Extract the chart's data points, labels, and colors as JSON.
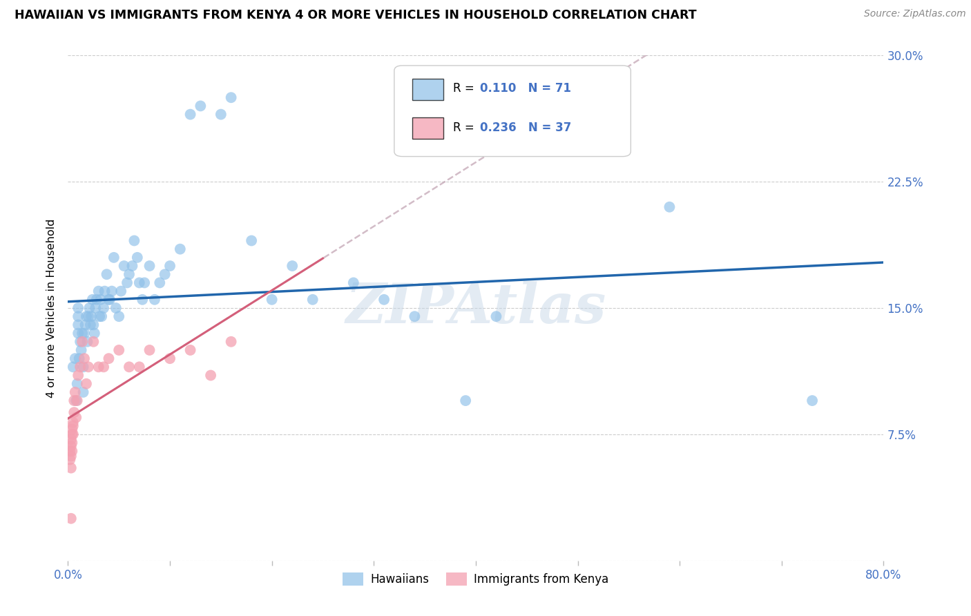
{
  "title": "HAWAIIAN VS IMMIGRANTS FROM KENYA 4 OR MORE VEHICLES IN HOUSEHOLD CORRELATION CHART",
  "source": "Source: ZipAtlas.com",
  "ylabel": "4 or more Vehicles in Household",
  "xlim": [
    0.0,
    0.8
  ],
  "ylim": [
    0.0,
    0.3
  ],
  "xticks": [
    0.0,
    0.1,
    0.2,
    0.3,
    0.4,
    0.5,
    0.6,
    0.7,
    0.8
  ],
  "xtick_labels": [
    "0.0%",
    "",
    "",
    "",
    "",
    "",
    "",
    "",
    "80.0%"
  ],
  "yticks": [
    0.0,
    0.075,
    0.15,
    0.225,
    0.3
  ],
  "ytick_labels": [
    "",
    "7.5%",
    "15.0%",
    "22.5%",
    "30.0%"
  ],
  "hawaiian_R": 0.11,
  "hawaiian_N": 71,
  "kenya_R": 0.236,
  "kenya_N": 37,
  "hawaiian_color": "#8dbfe8",
  "kenya_color": "#f4a0b0",
  "hawaiian_line_color": "#2166ac",
  "kenya_line_color": "#d45f7a",
  "kenya_dash_color": "#c0a0b0",
  "watermark": "ZIPAtlas",
  "hawaiian_x": [
    0.005,
    0.007,
    0.008,
    0.009,
    0.01,
    0.01,
    0.01,
    0.01,
    0.011,
    0.012,
    0.013,
    0.014,
    0.015,
    0.015,
    0.016,
    0.017,
    0.018,
    0.019,
    0.02,
    0.021,
    0.022,
    0.023,
    0.024,
    0.025,
    0.026,
    0.027,
    0.028,
    0.03,
    0.031,
    0.032,
    0.033,
    0.035,
    0.036,
    0.038,
    0.04,
    0.041,
    0.043,
    0.045,
    0.047,
    0.05,
    0.052,
    0.055,
    0.058,
    0.06,
    0.063,
    0.065,
    0.068,
    0.07,
    0.073,
    0.075,
    0.08,
    0.085,
    0.09,
    0.095,
    0.1,
    0.11,
    0.12,
    0.13,
    0.15,
    0.16,
    0.18,
    0.2,
    0.22,
    0.24,
    0.28,
    0.31,
    0.34,
    0.39,
    0.42,
    0.59,
    0.73
  ],
  "hawaiian_y": [
    0.115,
    0.12,
    0.095,
    0.105,
    0.135,
    0.14,
    0.145,
    0.15,
    0.12,
    0.13,
    0.125,
    0.135,
    0.1,
    0.115,
    0.135,
    0.14,
    0.145,
    0.13,
    0.145,
    0.15,
    0.14,
    0.145,
    0.155,
    0.14,
    0.135,
    0.15,
    0.155,
    0.16,
    0.145,
    0.155,
    0.145,
    0.15,
    0.16,
    0.17,
    0.155,
    0.155,
    0.16,
    0.18,
    0.15,
    0.145,
    0.16,
    0.175,
    0.165,
    0.17,
    0.175,
    0.19,
    0.18,
    0.165,
    0.155,
    0.165,
    0.175,
    0.155,
    0.165,
    0.17,
    0.175,
    0.185,
    0.265,
    0.27,
    0.265,
    0.275,
    0.19,
    0.155,
    0.175,
    0.155,
    0.165,
    0.155,
    0.145,
    0.095,
    0.145,
    0.21,
    0.095
  ],
  "kenya_x": [
    0.002,
    0.002,
    0.003,
    0.003,
    0.003,
    0.003,
    0.004,
    0.004,
    0.004,
    0.004,
    0.005,
    0.005,
    0.005,
    0.006,
    0.006,
    0.007,
    0.008,
    0.009,
    0.01,
    0.012,
    0.014,
    0.016,
    0.018,
    0.02,
    0.025,
    0.03,
    0.035,
    0.04,
    0.05,
    0.06,
    0.07,
    0.08,
    0.1,
    0.12,
    0.14,
    0.16,
    0.003
  ],
  "kenya_y": [
    0.06,
    0.065,
    0.055,
    0.062,
    0.068,
    0.072,
    0.065,
    0.07,
    0.075,
    0.078,
    0.075,
    0.08,
    0.082,
    0.088,
    0.095,
    0.1,
    0.085,
    0.095,
    0.11,
    0.115,
    0.13,
    0.12,
    0.105,
    0.115,
    0.13,
    0.115,
    0.115,
    0.12,
    0.125,
    0.115,
    0.115,
    0.125,
    0.12,
    0.125,
    0.11,
    0.13,
    0.025
  ]
}
